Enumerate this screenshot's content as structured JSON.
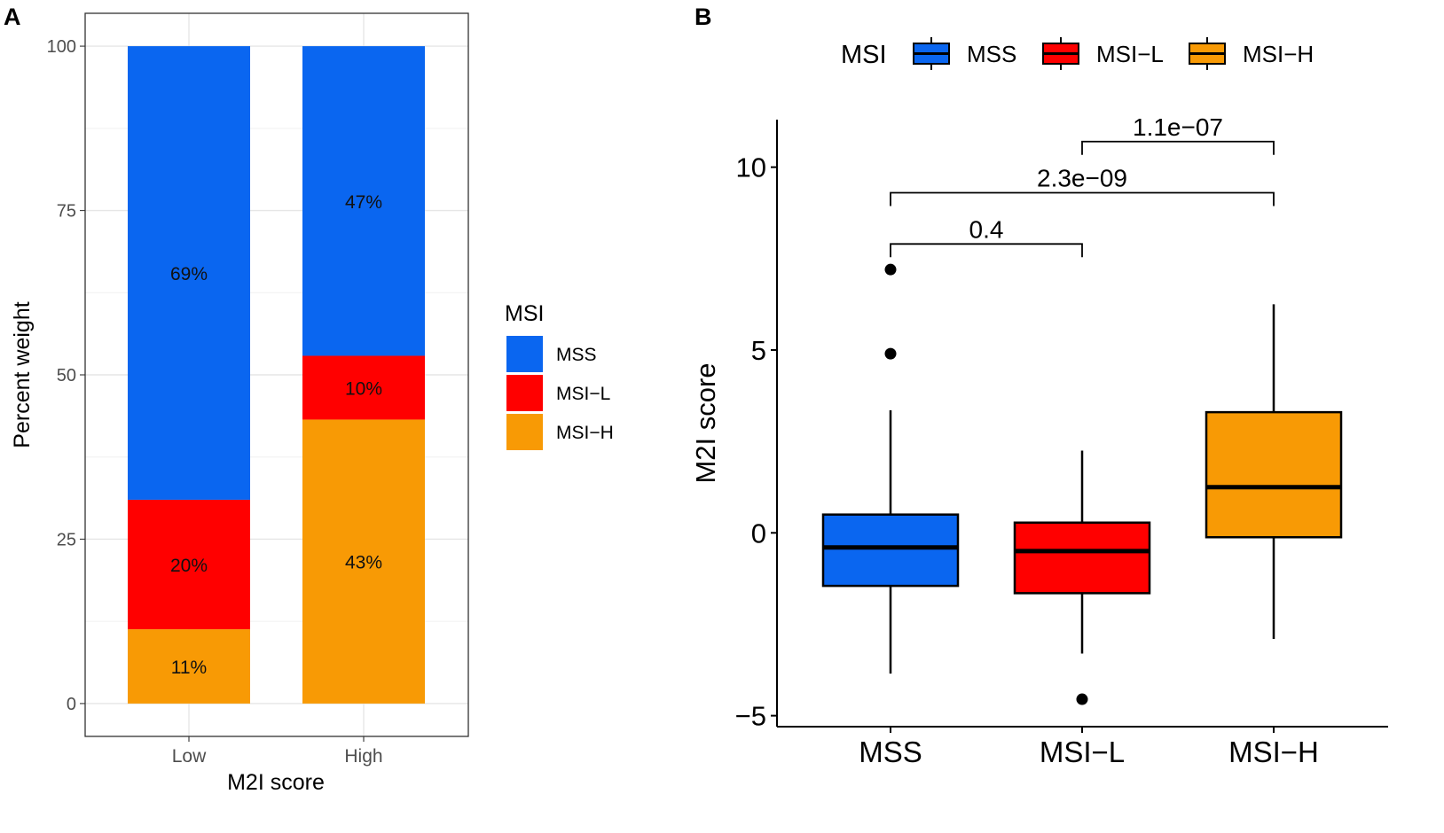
{
  "chart_data": [
    {
      "panel_label": "A",
      "type": "bar",
      "stacked": true,
      "categories": [
        "Low",
        "High"
      ],
      "series": [
        {
          "name": "MSI−H",
          "values": [
            11.3,
            43.2
          ],
          "color": "#F89A05"
        },
        {
          "name": "MSI−L",
          "values": [
            19.7,
            9.7
          ],
          "color": "#FF0000"
        },
        {
          "name": "MSS",
          "values": [
            69.0,
            47.1
          ],
          "color": "#0A66F0"
        }
      ],
      "data_labels": [
        {
          "category": "Low",
          "series": "MSS",
          "text": "69%"
        },
        {
          "category": "Low",
          "series": "MSI−L",
          "text": "20%"
        },
        {
          "category": "Low",
          "series": "MSI−H",
          "text": "11%"
        },
        {
          "category": "High",
          "series": "MSS",
          "text": "47%"
        },
        {
          "category": "High",
          "series": "MSI−L",
          "text": "10%"
        },
        {
          "category": "High",
          "series": "MSI−H",
          "text": "43%"
        }
      ],
      "xlabel": "M2I score",
      "ylabel": "Percent weight",
      "ylim": [
        -5,
        105
      ],
      "yticks": [
        0,
        25,
        50,
        75,
        100
      ],
      "ytick_labels": [
        "0",
        "25",
        "50",
        "75",
        "100"
      ],
      "grid": true,
      "legend": {
        "title": "MSI",
        "position": "right",
        "entries": [
          {
            "label": "MSS",
            "color": "#0A66F0"
          },
          {
            "label": "MSI−L",
            "color": "#FF0000"
          },
          {
            "label": "MSI−H",
            "color": "#F89A05"
          }
        ]
      }
    },
    {
      "panel_label": "B",
      "type": "box",
      "categories": [
        "MSS",
        "MSI−L",
        "MSI−H"
      ],
      "boxes": [
        {
          "name": "MSS",
          "whisker_low": -3.85,
          "q1": -1.45,
          "median": -0.4,
          "q3": 0.5,
          "whisker_high": 3.35,
          "outliers": [
            7.2,
            4.9
          ],
          "color": "#0A66F0"
        },
        {
          "name": "MSI−L",
          "whisker_low": -3.3,
          "q1": -1.65,
          "median": -0.5,
          "q3": 0.28,
          "whisker_high": 2.25,
          "outliers": [
            -4.55
          ],
          "color": "#FF0000"
        },
        {
          "name": "MSI−H",
          "whisker_low": -2.9,
          "q1": -0.12,
          "median": 1.25,
          "q3": 3.3,
          "whisker_high": 6.25,
          "outliers": [],
          "color": "#F89A05"
        }
      ],
      "comparisons": [
        {
          "from": "MSS",
          "to": "MSI−L",
          "label": "0.4",
          "y": 7.9
        },
        {
          "from": "MSS",
          "to": "MSI−H",
          "label": "2.3e−09",
          "y": 9.3
        },
        {
          "from": "MSI−L",
          "to": "MSI−H",
          "label": "1.1e−07",
          "y": 10.7
        }
      ],
      "xlabel": "",
      "ylabel": "M2I score",
      "ylim": [
        -5.3,
        11.3
      ],
      "yticks": [
        -5,
        0,
        5,
        10
      ],
      "ytick_labels": [
        "−5",
        "0",
        "5",
        "10"
      ],
      "grid": false,
      "legend": {
        "title": "MSI",
        "position": "top",
        "entries": [
          {
            "label": "MSS",
            "color": "#0A66F0"
          },
          {
            "label": "MSI−L",
            "color": "#FF0000"
          },
          {
            "label": "MSI−H",
            "color": "#F89A05"
          }
        ]
      }
    }
  ]
}
